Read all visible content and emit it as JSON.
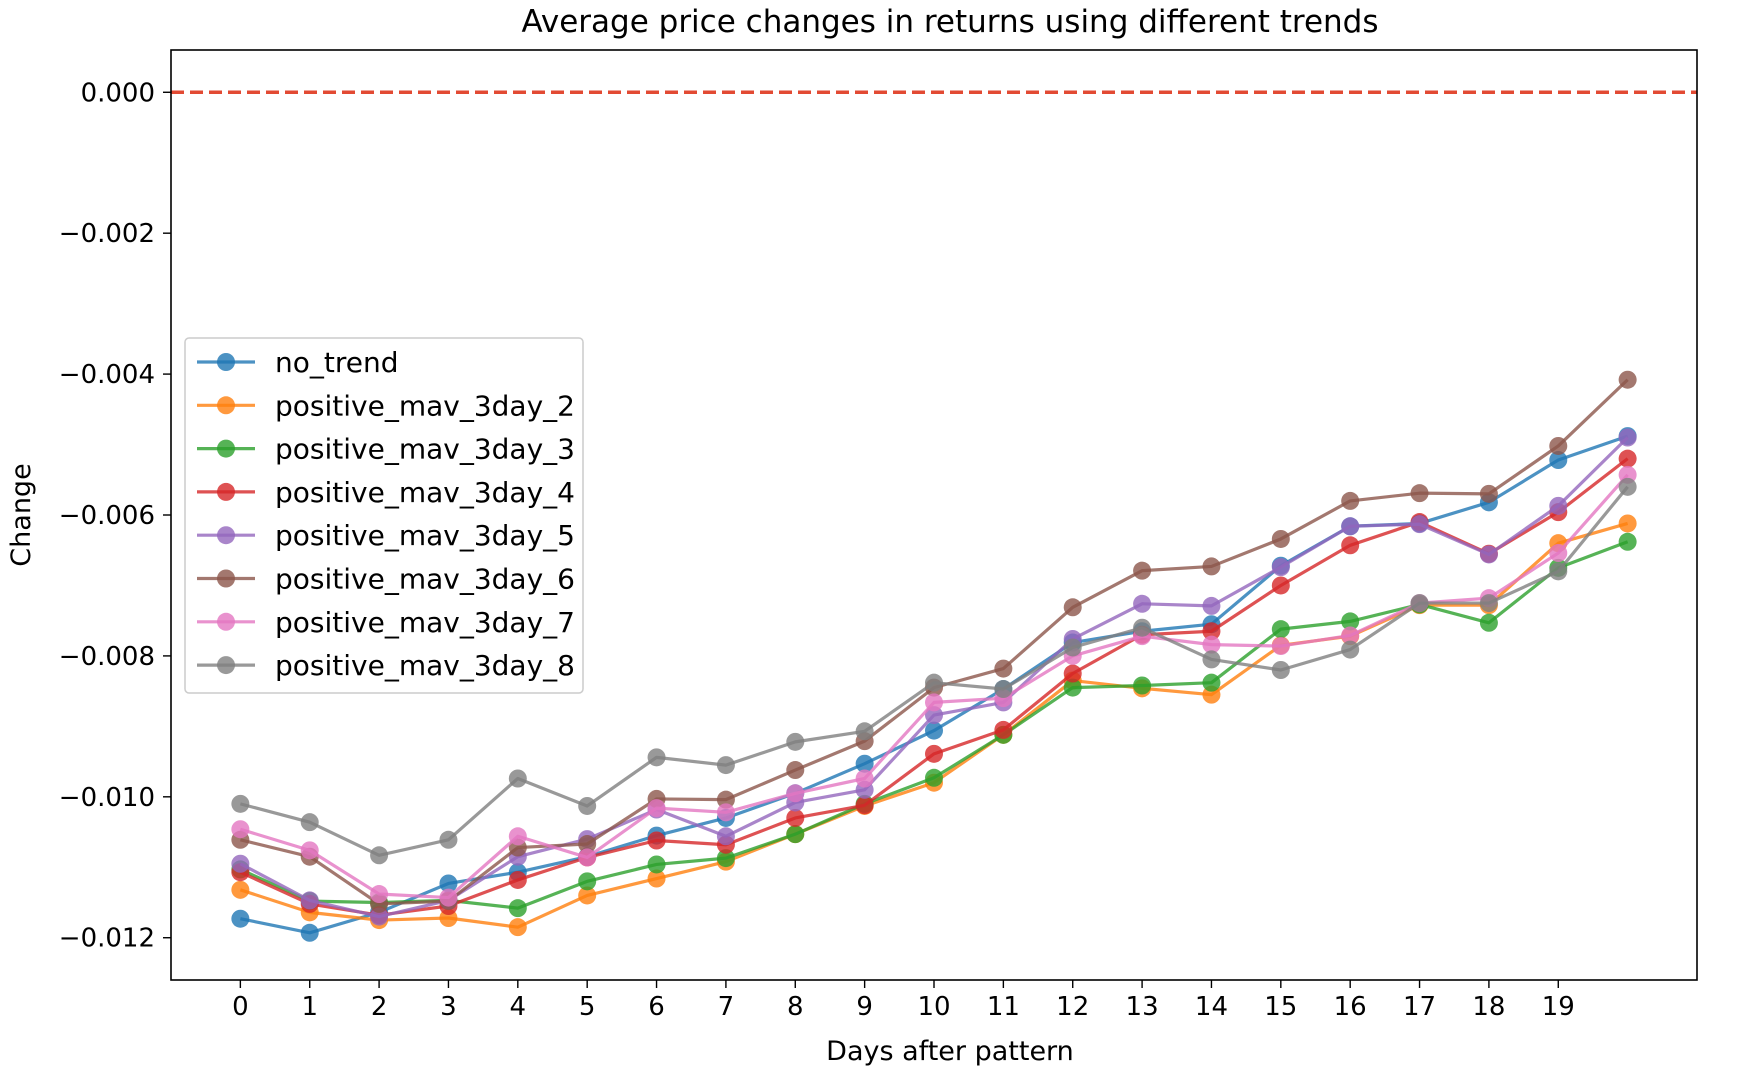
{
  "chart_data": {
    "type": "line",
    "title": "Average price changes in returns using different trends",
    "xlabel": "Days after pattern",
    "ylabel": "Change",
    "xlim": [
      -1,
      21
    ],
    "ylim": [
      -0.0126,
      0.0006
    ],
    "x_ticks": [
      0,
      1,
      2,
      3,
      4,
      5,
      6,
      7,
      8,
      9,
      10,
      11,
      12,
      13,
      14,
      15,
      16,
      17,
      18,
      19
    ],
    "x_tick_labels": [
      "0",
      "1",
      "2",
      "3",
      "4",
      "5",
      "6",
      "7",
      "8",
      "9",
      "10",
      "11",
      "12",
      "13",
      "14",
      "15",
      "16",
      "17",
      "18",
      "19"
    ],
    "y_ticks": [
      0.0,
      -0.002,
      -0.004,
      -0.006,
      -0.008,
      -0.01,
      -0.012
    ],
    "y_tick_labels": [
      "0.000",
      "−0.002",
      "−0.004",
      "−0.006",
      "−0.008",
      "−0.010",
      "−0.012"
    ],
    "grid": false,
    "legend_position": "center-left",
    "reference_line": {
      "y": 0.0,
      "color": "#e24a33",
      "style": "dashed"
    },
    "x": [
      0,
      1,
      2,
      3,
      4,
      5,
      6,
      7,
      8,
      9,
      10,
      11,
      12,
      13,
      14,
      15,
      16,
      17,
      18,
      19,
      20
    ],
    "series": [
      {
        "name": "no_trend",
        "color": "#1f77b4",
        "values": [
          -0.01173,
          -0.01193,
          -0.01164,
          -0.01123,
          -0.01107,
          -0.01085,
          -0.01055,
          -0.0103,
          -0.00995,
          -0.00953,
          -0.00906,
          -0.00847,
          -0.00781,
          -0.00765,
          -0.00755,
          -0.00672,
          -0.00616,
          -0.00612,
          -0.00582,
          -0.00522,
          -0.00488
        ]
      },
      {
        "name": "positive_mav_3day_2",
        "color": "#ff7f0e",
        "values": [
          -0.01132,
          -0.01164,
          -0.01175,
          -0.01172,
          -0.01185,
          -0.0114,
          -0.01116,
          -0.01092,
          -0.01053,
          -0.01013,
          -0.0098,
          -0.00912,
          -0.00835,
          -0.00846,
          -0.00855,
          -0.00785,
          -0.00772,
          -0.00728,
          -0.00728,
          -0.0064,
          -0.00612
        ]
      },
      {
        "name": "positive_mav_3day_3",
        "color": "#2ca02c",
        "values": [
          -0.01103,
          -0.01148,
          -0.0115,
          -0.01147,
          -0.01158,
          -0.0112,
          -0.01096,
          -0.01087,
          -0.01053,
          -0.0101,
          -0.00973,
          -0.00912,
          -0.00845,
          -0.00842,
          -0.00838,
          -0.00762,
          -0.00751,
          -0.00727,
          -0.00753,
          -0.00675,
          -0.00638
        ]
      },
      {
        "name": "positive_mav_3day_4",
        "color": "#d62728",
        "values": [
          -0.01107,
          -0.01152,
          -0.01168,
          -0.01155,
          -0.01118,
          -0.01086,
          -0.01062,
          -0.01068,
          -0.0103,
          -0.01012,
          -0.00939,
          -0.00905,
          -0.00825,
          -0.0077,
          -0.00765,
          -0.007,
          -0.00643,
          -0.0061,
          -0.00655,
          -0.00596,
          -0.0052
        ]
      },
      {
        "name": "positive_mav_3day_5",
        "color": "#9467bd",
        "values": [
          -0.01095,
          -0.01147,
          -0.0117,
          -0.01147,
          -0.01085,
          -0.0106,
          -0.01018,
          -0.01056,
          -0.01008,
          -0.0099,
          -0.00884,
          -0.00866,
          -0.00776,
          -0.00726,
          -0.00729,
          -0.00674,
          -0.00616,
          -0.00613,
          -0.00656,
          -0.00587,
          -0.0049
        ]
      },
      {
        "name": "positive_mav_3day_6",
        "color": "#8c564b",
        "values": [
          -0.01061,
          -0.01085,
          -0.01152,
          -0.01148,
          -0.01072,
          -0.01067,
          -0.01003,
          -0.01004,
          -0.00962,
          -0.00921,
          -0.00845,
          -0.00818,
          -0.00731,
          -0.00679,
          -0.00673,
          -0.00634,
          -0.0058,
          -0.00569,
          -0.0057,
          -0.00502,
          -0.00408
        ]
      },
      {
        "name": "positive_mav_3day_7",
        "color": "#e377c2",
        "values": [
          -0.01046,
          -0.01076,
          -0.01138,
          -0.01143,
          -0.01056,
          -0.01086,
          -0.01016,
          -0.01022,
          -0.00995,
          -0.00974,
          -0.00866,
          -0.0086,
          -0.008,
          -0.00772,
          -0.00784,
          -0.00786,
          -0.00771,
          -0.00725,
          -0.00718,
          -0.00654,
          -0.00543
        ]
      },
      {
        "name": "positive_mav_3day_8",
        "color": "#7f7f7f",
        "values": [
          -0.0101,
          -0.01036,
          -0.01083,
          -0.01061,
          -0.00974,
          -0.01013,
          -0.00944,
          -0.00955,
          -0.00922,
          -0.00907,
          -0.00838,
          -0.00847,
          -0.00788,
          -0.0076,
          -0.00805,
          -0.0082,
          -0.00791,
          -0.00725,
          -0.00725,
          -0.0068,
          -0.0056
        ]
      }
    ]
  }
}
